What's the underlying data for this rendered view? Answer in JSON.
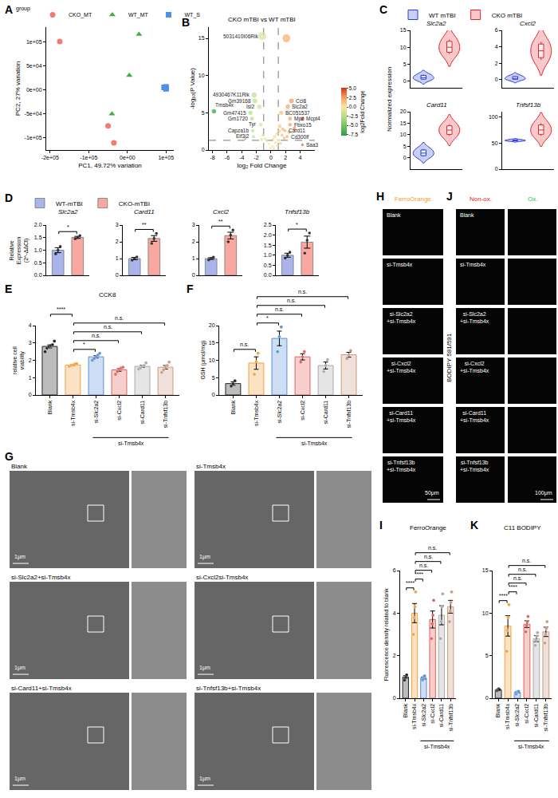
{
  "panel_letters": [
    "A",
    "B",
    "C",
    "D",
    "E",
    "F",
    "G",
    "H",
    "I",
    "J",
    "K"
  ],
  "chart_data": [
    {
      "type": "scatter",
      "legend": "top",
      "legend_title": "group",
      "x_label": "PC1, 49.72% variation",
      "y_label": "PC2, 27% variation",
      "xlim": [
        -210000,
        120000
      ],
      "xticks": [
        {
          "value": -200000,
          "label": "-2e+05"
        },
        {
          "value": -100000,
          "label": "-1e+05"
        },
        {
          "value": 0,
          "label": "0e+00"
        },
        {
          "value": 100000,
          "label": "1e+05"
        }
      ],
      "ylim": [
        -125000,
        130000
      ],
      "yticks": [
        {
          "value": -100000,
          "label": "-1e+05"
        },
        {
          "value": -50000,
          "label": "-5e+04"
        },
        {
          "value": 0,
          "label": "0e+00"
        },
        {
          "value": 50000,
          "label": "5e+04"
        },
        {
          "value": 100000,
          "label": "1e+05"
        }
      ],
      "series": [
        {
          "name": "CKO_MT",
          "color": "#f07b72",
          "marker": "circle",
          "x": [
            -175000,
            -35000,
            -50000
          ],
          "y": [
            100000,
            -110000,
            -75000
          ]
        },
        {
          "name": "WT_MT",
          "color": "#3cb043",
          "marker": "triangle",
          "x": [
            30000,
            5000,
            -40000
          ],
          "y": [
            115000,
            30000,
            -50000
          ]
        },
        {
          "name": "WT_S",
          "color": "#4f8fe6",
          "marker": "square",
          "x": [
            95000,
            100000,
            100000
          ],
          "y": [
            5000,
            2000,
            6000
          ]
        }
      ]
    },
    {
      "type": "scatter",
      "title": "CKO mTBI vs WT mTBI",
      "x_label": "log₂ Fold Change",
      "y_label": "-log₁₀(P Value)",
      "xlim": [
        -8.5,
        6
      ],
      "xticks": [
        -8,
        -6,
        -4,
        -2,
        0,
        2,
        4
      ],
      "ylim": [
        0,
        16.5
      ],
      "yticks": [
        0,
        5,
        10,
        15
      ],
      "x": [
        -1.2,
        2.1,
        -7.8,
        -2.3,
        -2.2,
        -1.6,
        -2.8,
        -2.6,
        -1.4,
        -2.5,
        -2.4,
        2.8,
        2.3,
        1.4,
        2.6,
        4.3,
        2.6,
        1.9,
        2.2,
        4.3,
        1.2,
        1.6,
        1.1,
        0.8,
        0.5,
        0.3,
        1.5,
        2.5,
        3.2,
        1.8,
        -0.5,
        -0.8,
        -1.1,
        -0.3,
        0.2,
        0.6,
        1.0,
        -1.3,
        0.9,
        -0.1,
        1.3,
        0.4
      ],
      "y": [
        15.3,
        15.0,
        5.2,
        7.4,
        6.6,
        5.8,
        5.0,
        4.2,
        3.4,
        2.6,
        1.8,
        6.6,
        5.8,
        5.0,
        4.2,
        4.2,
        3.4,
        2.6,
        1.8,
        0.7,
        3.2,
        2.8,
        2.5,
        2.2,
        1.8,
        1.5,
        2.0,
        2.4,
        2.9,
        1.6,
        1.2,
        1.5,
        2.0,
        0.8,
        0.5,
        1.0,
        1.3,
        1.4,
        0.6,
        0.3,
        0.9,
        0.2
      ],
      "labels": [
        "5031410I06Rik",
        null,
        "Tmsb4x",
        "4930467K11Rik",
        "Gm39168",
        "Isl2",
        "Gm47415",
        "Gm1720",
        "Tyr",
        "Capza1b",
        "Eif3j2",
        "Ccl8",
        "Slc2a2",
        "BC051537",
        "Mpz",
        "Mcpt4",
        "Fbxo15",
        "Card11",
        "Cd300lf",
        "Saa3",
        null,
        null,
        null,
        null,
        null,
        null,
        null,
        null,
        null,
        null,
        null,
        null,
        null,
        null,
        null,
        null,
        null,
        null,
        null,
        null,
        null,
        null
      ],
      "cutoffs": {
        "x": [
          -1,
          1
        ],
        "y": [
          1.3
        ]
      },
      "colorbar": {
        "title": "log2Fold Change",
        "range": [
          -7.8,
          5.2
        ],
        "ticks": [
          {
            "value": -7.5,
            "label": "-7.5"
          },
          {
            "value": -5,
            "label": "-5.0"
          },
          {
            "value": -2.5,
            "label": "-2.5"
          },
          {
            "value": 0,
            "label": "0.0"
          },
          {
            "value": 2.5,
            "label": "2.5"
          },
          {
            "value": 5,
            "label": "5.0"
          }
        ]
      }
    },
    {
      "type": "violin",
      "legend": "top",
      "tick_labels": "y",
      "y_label": "Normalized expression",
      "series": [
        {
          "name": "WT mTBI",
          "color": "#2c3ed6"
        },
        {
          "name": "CKO mTBI",
          "color": "#e3262d"
        }
      ],
      "subplots": [
        {
          "title": "Slc2a2",
          "values": [
            [
              0.4,
              1.0,
              1.9
            ],
            [
              8.0,
              10.0,
              12.3
            ]
          ],
          "ylim": [
            -2,
            15
          ],
          "yticks": [
            0,
            5,
            10,
            15
          ]
        },
        {
          "title": "Cxcl2",
          "values": [
            [
              0.0,
              0.15,
              0.45
            ],
            [
              2.4,
              3.5,
              4.6
            ]
          ],
          "ylim": [
            -1,
            6
          ],
          "yticks": [
            0,
            2,
            4,
            6
          ]
        },
        {
          "title": "Card11",
          "values": [
            [
              0.5,
              2.0,
              3.8
            ],
            [
              9.5,
              12.0,
              14.5
            ]
          ],
          "ylim": [
            -5,
            20
          ],
          "yticks": [
            0,
            5,
            10,
            15,
            20
          ]
        },
        {
          "title": "Tnfsf13b",
          "values": [
            [
              54,
              55,
              56.5
            ],
            [
              64,
              75,
              88
            ]
          ],
          "ylim": [
            0,
            110
          ],
          "yticks": [
            0,
            50,
            100
          ]
        }
      ]
    },
    {
      "type": "bar",
      "legend": "top",
      "tick_labels": "y",
      "y_label": "Relative Expression (2^-ΔΔCt)",
      "series": [
        {
          "name": "WT-mTBI",
          "color": "#aab4ea"
        },
        {
          "name": "CKO-mTBI",
          "color": "#f7a8a0"
        }
      ],
      "subplots": [
        {
          "title": "Slc2a2",
          "values": [
            1.0,
            1.51
          ],
          "errors": [
            0.1,
            0.04
          ],
          "points": [
            [
              0.85,
              1.0,
              1.15
            ],
            [
              1.45,
              1.5,
              1.58
            ]
          ],
          "ylim": [
            0,
            2
          ],
          "yticks": [
            {
              "value": 0,
              "label": "0.0"
            },
            {
              "value": 0.5,
              "label": "0.5"
            },
            {
              "value": 1,
              "label": "1.0"
            },
            {
              "value": 1.5,
              "label": "1.5"
            },
            {
              "value": 2,
              "label": "2.0"
            }
          ],
          "comparisons": [
            {
              "pair": [
                0,
                1
              ],
              "label": "*"
            }
          ]
        },
        {
          "title": "Card11",
          "values": [
            1.0,
            2.2
          ],
          "errors": [
            0.07,
            0.17
          ],
          "points": [
            [
              0.9,
              1.0,
              1.1
            ],
            [
              1.9,
              2.2,
              2.5
            ]
          ],
          "ylim": [
            0,
            3
          ],
          "yticks": [
            0,
            1,
            2,
            3
          ],
          "comparisons": [
            {
              "pair": [
                0,
                1
              ],
              "label": "**"
            }
          ]
        },
        {
          "title": "Cxcl2",
          "values": [
            1.0,
            2.37
          ],
          "errors": [
            0.05,
            0.2
          ],
          "points": [
            [
              0.92,
              1.0,
              1.08
            ],
            [
              2.0,
              2.4,
              2.7
            ]
          ],
          "ylim": [
            0,
            3
          ],
          "yticks": [
            0,
            1,
            2,
            3
          ],
          "comparisons": [
            {
              "pair": [
                0,
                1
              ],
              "label": "**"
            }
          ]
        },
        {
          "title": "Tnfsf13b",
          "values": [
            1.0,
            1.65
          ],
          "errors": [
            0.1,
            0.3
          ],
          "points": [
            [
              0.85,
              1.0,
              1.15
            ],
            [
              1.1,
              1.75,
              2.1
            ]
          ],
          "ylim": [
            0,
            2.5
          ],
          "yticks": [
            {
              "value": 0,
              "label": "0.0"
            },
            {
              "value": 0.5,
              "label": "0.5"
            },
            {
              "value": 1,
              "label": "1.0"
            },
            {
              "value": 1.5,
              "label": "1.5"
            },
            {
              "value": 2,
              "label": "2.0"
            },
            {
              "value": 2.5,
              "label": "2.5"
            }
          ],
          "comparisons": [
            {
              "pair": [
                0,
                1
              ],
              "label": "*"
            }
          ]
        }
      ]
    },
    {
      "type": "bar",
      "title": "CCK8",
      "y_label": "relative cell viability",
      "categories": [
        "Blank",
        "si-Tmsb4x",
        "si-Slc2a2",
        "si-Cxcl2",
        "si-Card11",
        "si-Tnfsf13b"
      ],
      "values": [
        2.8,
        1.73,
        2.2,
        1.45,
        1.65,
        1.6
      ],
      "errors": [
        0.09,
        0.03,
        0.07,
        0.08,
        0.06,
        0.1
      ],
      "points": [
        [
          2.5,
          2.7,
          2.8,
          2.85,
          2.9,
          3.1
        ],
        [
          1.65,
          1.7,
          1.72,
          1.78,
          1.8
        ],
        [
          2.0,
          2.1,
          2.2,
          2.3,
          2.4
        ],
        [
          1.2,
          1.35,
          1.5,
          1.55,
          1.6
        ],
        [
          1.5,
          1.55,
          1.65,
          1.7,
          1.85
        ],
        [
          1.3,
          1.45,
          1.6,
          1.7,
          1.9
        ]
      ],
      "colors": [
        "#222222",
        "#f2a03d",
        "#5a8fd8",
        "#e0605a",
        "#a8a8a8",
        "#c99a80"
      ],
      "ylim": [
        0,
        4
      ],
      "yticks": [
        0,
        1,
        2,
        3,
        4
      ],
      "comparisons": [
        {
          "pair": [
            1,
            2
          ],
          "label": "*"
        },
        {
          "pair": [
            1,
            3
          ],
          "label": "n.s."
        },
        {
          "pair": [
            1,
            4
          ],
          "label": "n.s."
        },
        {
          "pair": [
            1,
            5
          ],
          "label": "n.s."
        },
        {
          "pair": [
            0,
            1
          ],
          "label": "****"
        }
      ],
      "group": {
        "label": "si-Tmsb4x",
        "from": 2,
        "to": 5
      }
    },
    {
      "type": "bar",
      "y_label": "GSH (μmol/mg)",
      "categories": [
        "Blank",
        "si-Tmsb4x",
        "si-Slc2a2",
        "si-Cxcl2",
        "si-Card11",
        "si-Tnfsf13b"
      ],
      "values": [
        3.3,
        9.2,
        16.3,
        11.0,
        8.5,
        11.6
      ],
      "errors": [
        0.5,
        1.8,
        2.1,
        0.9,
        1.0,
        0.7
      ],
      "points": [
        [
          2.6,
          3.2,
          4.1
        ],
        [
          6.0,
          9.6,
          12.0
        ],
        [
          12.5,
          16.8,
          19.6
        ],
        [
          9.5,
          11.0,
          12.5
        ],
        [
          6.8,
          8.5,
          10.2
        ],
        [
          10.5,
          11.5,
          12.8
        ]
      ],
      "colors": [
        "#222222",
        "#f2a03d",
        "#5a8fd8",
        "#e0605a",
        "#a8a8a8",
        "#c99a80"
      ],
      "ylim": [
        0,
        20
      ],
      "yticks": [
        0,
        5,
        10,
        15,
        20
      ],
      "comparisons": [
        {
          "pair": [
            0,
            1
          ],
          "label": "n.s."
        },
        {
          "pair": [
            1,
            2
          ],
          "label": "*"
        },
        {
          "pair": [
            1,
            3
          ],
          "label": "n.s."
        },
        {
          "pair": [
            1,
            4
          ],
          "label": "n.s."
        },
        {
          "pair": [
            1,
            5
          ],
          "label": "n.s."
        }
      ],
      "group": {
        "label": "si-Tmsb4x",
        "from": 2,
        "to": 5
      }
    },
    {
      "type": "bar",
      "title": "FerroOrange",
      "y_label": "Fluorescence density related to blank",
      "categories": [
        "Blank",
        "si-Tmsb4x",
        "si-Slc2a2",
        "si-Cxcl2",
        "si-Card11",
        "si-Tnfsf13b"
      ],
      "values": [
        1.0,
        4.0,
        0.95,
        3.7,
        3.9,
        4.3
      ],
      "errors": [
        0.06,
        0.45,
        0.05,
        0.4,
        0.45,
        0.3
      ],
      "points": [
        [
          0.85,
          0.95,
          1.0,
          1.1
        ],
        [
          3.0,
          3.8,
          4.3,
          5.0
        ],
        [
          0.85,
          0.9,
          1.0,
          1.05
        ],
        [
          2.8,
          3.5,
          3.9,
          4.6
        ],
        [
          2.8,
          3.6,
          4.3,
          4.9
        ],
        [
          3.6,
          4.1,
          4.5,
          5.0
        ]
      ],
      "colors": [
        "#222222",
        "#f2a03d",
        "#5a8fd8",
        "#e0605a",
        "#a8a8a8",
        "#c99a80"
      ],
      "ylim": [
        0,
        6
      ],
      "yticks": [
        0,
        2,
        4,
        6
      ],
      "comparisons": [
        {
          "pair": [
            0,
            1
          ],
          "label": "****"
        },
        {
          "pair": [
            1,
            2
          ],
          "label": "****"
        },
        {
          "pair": [
            1,
            3
          ],
          "label": "n.s."
        },
        {
          "pair": [
            1,
            4
          ],
          "label": "n.s."
        },
        {
          "pair": [
            1,
            5
          ],
          "label": "n.s."
        }
      ],
      "group": {
        "label": "si-Tmsb4x",
        "from": 2,
        "to": 5
      }
    },
    {
      "type": "bar",
      "title": "C11 BODIPY",
      "categories": [
        "Blank",
        "si-Tmsb4x",
        "si-Slc2a2",
        "si-Cxcl2",
        "si-Card11",
        "si-Tnfsf13b"
      ],
      "values": [
        1.0,
        8.5,
        0.7,
        8.7,
        7.0,
        7.8
      ],
      "errors": [
        0.05,
        1.2,
        0.07,
        0.4,
        0.35,
        0.55
      ],
      "points": [
        [
          0.9,
          1.0,
          1.1,
          1.0
        ],
        [
          5.5,
          8.0,
          9.5,
          11.0
        ],
        [
          0.5,
          0.7,
          0.8,
          0.8
        ],
        [
          7.8,
          8.5,
          9.0,
          9.6
        ],
        [
          6.2,
          6.8,
          7.3,
          7.7
        ],
        [
          6.5,
          7.5,
          8.2,
          9.0
        ]
      ],
      "colors": [
        "#222222",
        "#f2a03d",
        "#5a8fd8",
        "#e0605a",
        "#a8a8a8",
        "#c99a80"
      ],
      "ylim": [
        0,
        15
      ],
      "yticks": [
        0,
        5,
        10,
        15
      ],
      "comparisons": [
        {
          "pair": [
            0,
            1
          ],
          "label": "****"
        },
        {
          "pair": [
            1,
            2
          ],
          "label": "****"
        },
        {
          "pair": [
            1,
            3
          ],
          "label": "n.s."
        },
        {
          "pair": [
            1,
            4
          ],
          "label": "n.s."
        },
        {
          "pair": [
            1,
            5
          ],
          "label": "n.s."
        }
      ],
      "group": {
        "label": "si-Tmsb4x",
        "from": 2,
        "to": 5
      }
    }
  ],
  "image_panels": {
    "G": {
      "labels": [
        "Blank",
        "si-Tmsb4x",
        "si-Slc2a2+si-Tmsb4x",
        "si-Cxcl2si-Tmsb4x",
        "si-Card11+si-Tmsb4x",
        "si-Tnfsf13b+si-Tmsb4x"
      ],
      "scale_bar": "1μm"
    },
    "H": {
      "title": "FerroOrange",
      "title_color": "#f0a030",
      "labels": [
        "Blank",
        "si-Tmsb4x",
        "si-Slc2a2+si-Tmsb4x",
        "si-Cxcl2+si-Tmsb4x",
        "si-Card11+si-Tmsb4x",
        "si-Tnfsf13b+si-Tmsb4x"
      ],
      "scale_bar": "50μm"
    },
    "J": {
      "columns": [
        "Non-ox.",
        "Ox."
      ],
      "column_colors": [
        "#e8202a",
        "#2fbf3f"
      ],
      "side_label": "BODIPY 581/591",
      "labels": [
        "Blank",
        "si-Tmsb4x",
        "si-Slc2a2+si-Tmsb4x",
        "si-Cxcl2+si-Tmsb4x",
        "si-Card11+si-Tmsb4x",
        "si-Tnfsf13b+si-Tmsb4x"
      ],
      "scale_bar": "100μm"
    }
  }
}
